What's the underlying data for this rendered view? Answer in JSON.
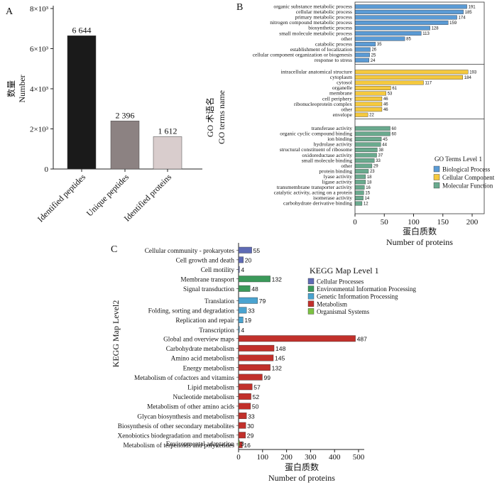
{
  "chart_data": [
    {
      "panel": "A",
      "type": "bar",
      "ylabel_cn": "数量",
      "ylabel_en": "Number",
      "yticks": [
        "0",
        "2×10³",
        "4×10³",
        "6×10³",
        "8×10³"
      ],
      "ylim": [
        0,
        8000
      ],
      "categories": [
        "Identified peptides",
        "Unique peptides",
        "Identified proteins"
      ],
      "values": [
        6644,
        2396,
        1612
      ],
      "value_labels": [
        "6 644",
        "2 396",
        "1 612"
      ],
      "colors": [
        "#1a1a1a",
        "#8c8282",
        "#d9cdcd"
      ]
    },
    {
      "panel": "B",
      "type": "bar",
      "orientation": "horizontal",
      "ylabel_cn": "GO 术语名",
      "ylabel_en": "GO terms name",
      "xlabel_cn": "蛋白质数",
      "xlabel_en": "Number of proteins",
      "xlim": [
        0,
        200
      ],
      "xticks": [
        "0",
        "50",
        "100",
        "150",
        "200"
      ],
      "legend_title": "GO Terms Level 1",
      "legend": [
        {
          "name": "Biological Process",
          "color": "#5b9bd5"
        },
        {
          "name": "Cellular Component",
          "color": "#f5c93e"
        },
        {
          "name": "Molecular Function",
          "color": "#6aaa8e"
        }
      ],
      "groups": [
        {
          "color": "#5b9bd5",
          "items": [
            {
              "label": "organic substance metabolic process",
              "value": 191
            },
            {
              "label": "cellular metabolic process",
              "value": 185
            },
            {
              "label": "primary metabolic process",
              "value": 174
            },
            {
              "label": "nitrogen compound metabolic process",
              "value": 159
            },
            {
              "label": "biosynthetic process",
              "value": 128
            },
            {
              "label": "small molecule metabolic process",
              "value": 113
            },
            {
              "label": "other",
              "value": 85
            },
            {
              "label": "catabolic process",
              "value": 35
            },
            {
              "label": "establishment of localization",
              "value": 26
            },
            {
              "label": "cellular component organization or biogenesis",
              "value": 25
            },
            {
              "label": "response to stress",
              "value": 24
            }
          ]
        },
        {
          "color": "#f5c93e",
          "items": [
            {
              "label": "intracellular anatomical structure",
              "value": 193
            },
            {
              "label": "cytoplasm",
              "value": 184
            },
            {
              "label": "cytosol",
              "value": 117
            },
            {
              "label": "organelle",
              "value": 61
            },
            {
              "label": "membrane",
              "value": 53
            },
            {
              "label": "cell periphery",
              "value": 46
            },
            {
              "label": "ribonucleoprotein complex",
              "value": 46
            },
            {
              "label": "other",
              "value": 46
            },
            {
              "label": "envelope",
              "value": 22
            }
          ]
        },
        {
          "color": "#6aaa8e",
          "items": [
            {
              "label": "transferase activity",
              "value": 60
            },
            {
              "label": "organic cyclic compound binding",
              "value": 60
            },
            {
              "label": "ion binding",
              "value": 45
            },
            {
              "label": "hydrolase activity",
              "value": 44
            },
            {
              "label": "structural constituent of ribosome",
              "value": 38
            },
            {
              "label": "oxidoreductase activity",
              "value": 37
            },
            {
              "label": "small molecule binding",
              "value": 33
            },
            {
              "label": "other",
              "value": 29
            },
            {
              "label": "protein binding",
              "value": 23
            },
            {
              "label": "lyase activity",
              "value": 18
            },
            {
              "label": "ligase activity",
              "value": 18
            },
            {
              "label": "transmembrane transporter activity",
              "value": 16
            },
            {
              "label": "catalytic activity, acting on a protein",
              "value": 15
            },
            {
              "label": "isomerase activity",
              "value": 14
            },
            {
              "label": "carbohydrate derivative binding",
              "value": 12
            }
          ]
        }
      ]
    },
    {
      "panel": "C",
      "type": "bar",
      "orientation": "horizontal",
      "ylabel_en": "KEGG Map Level2",
      "xlabel_cn": "蛋白质数",
      "xlabel_en": "Number of proteins",
      "xlim": [
        0,
        500
      ],
      "xticks": [
        "0",
        "100",
        "200",
        "300",
        "400",
        "500"
      ],
      "legend_title": "KEGG Map Level 1",
      "legend": [
        {
          "name": "Cellular Processes",
          "color": "#5f6bb5"
        },
        {
          "name": "Environmental Information Processing",
          "color": "#3b9a5a"
        },
        {
          "name": "Genetic Information Processing",
          "color": "#4aa3d0"
        },
        {
          "name": "Metabolism",
          "color": "#c1302b"
        },
        {
          "name": "Organismal Systems",
          "color": "#7cc242"
        }
      ],
      "groups": [
        {
          "color": "#5f6bb5",
          "items": [
            {
              "label": "Cellular community - prokaryotes",
              "value": 55
            },
            {
              "label": "Cell growth and death",
              "value": 20
            },
            {
              "label": "Cell motility",
              "value": 4
            }
          ]
        },
        {
          "color": "#3b9a5a",
          "items": [
            {
              "label": "Membrane transport",
              "value": 132
            },
            {
              "label": "Signal transduction",
              "value": 48
            }
          ]
        },
        {
          "color": "#4aa3d0",
          "items": [
            {
              "label": "Translation",
              "value": 79
            },
            {
              "label": "Folding, sorting and degradation",
              "value": 33
            },
            {
              "label": "Replication and repair",
              "value": 19
            },
            {
              "label": "Transcription",
              "value": 4
            }
          ]
        },
        {
          "color": "#c1302b",
          "items": [
            {
              "label": "Global and overview maps",
              "value": 487
            },
            {
              "label": "Carbohydrate metabolism",
              "value": 148
            },
            {
              "label": "Amino acid metabolism",
              "value": 145
            },
            {
              "label": "Energy metabolism",
              "value": 132
            },
            {
              "label": "Metabolism of cofactors and vitamins",
              "value": 99
            },
            {
              "label": "Lipid metabolism",
              "value": 57
            },
            {
              "label": "Nucleotide metabolism",
              "value": 52
            },
            {
              "label": "Metabolism of other amino acids",
              "value": 50
            },
            {
              "label": "Glycan biosynthesis and metabolism",
              "value": 33
            },
            {
              "label": "Biosynthesis of other secondary metabolites",
              "value": 30
            },
            {
              "label": "Xenobiotics biodegradation and metabolism",
              "value": 29
            },
            {
              "label": "Metabolism of terpenoids and polyketides",
              "value": 16
            }
          ]
        },
        {
          "color": "#7cc242",
          "items": [
            {
              "label": "Environmental adaptation",
              "value": 3
            }
          ]
        }
      ]
    }
  ]
}
